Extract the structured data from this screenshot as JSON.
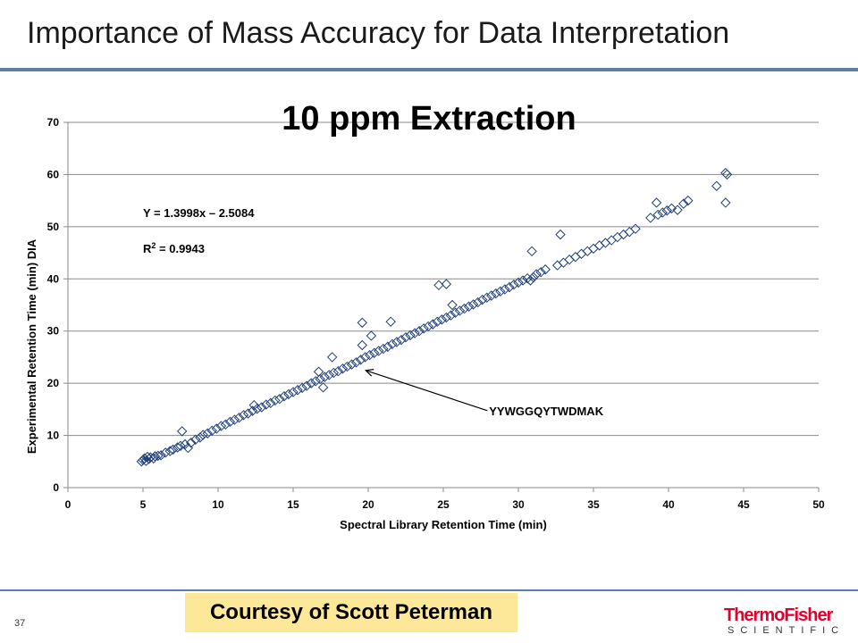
{
  "slide": {
    "title": "Importance of Mass Accuracy for Data Interpretation",
    "page_number": "37",
    "courtesy": "Courtesy of Scott Peterman",
    "logo": {
      "line1": "ThermoFisher",
      "line2": "SCIENTIFIC"
    }
  },
  "colors": {
    "marker": "#1f3f7a",
    "rule": "#5b7fa6",
    "highlight": "#fde89a",
    "brand": "#e4002b"
  },
  "chart_data": {
    "type": "scatter",
    "title": "10 ppm Extraction",
    "xlabel": "Spectral Library Retention Time (min)",
    "ylabel": "Experimental Retention Time (min) DIA",
    "xlim": [
      0,
      50
    ],
    "ylim": [
      0,
      70
    ],
    "xticks": [
      0,
      5,
      10,
      15,
      20,
      25,
      30,
      35,
      40,
      45,
      50
    ],
    "yticks": [
      0,
      10,
      20,
      30,
      40,
      50,
      60,
      70
    ],
    "grid": "horizontal",
    "marker": "open-diamond",
    "equation": "Y = 1.3998x – 2.5084",
    "r2_prefix": "R",
    "r2_sup": "2",
    "r2_value": " = 0.9943",
    "annotation": {
      "text": "YYWGGQYTWDMAK",
      "x": 19.6,
      "y": 22.8
    },
    "points": [
      [
        4.9,
        5.0
      ],
      [
        5.0,
        5.3
      ],
      [
        5.1,
        5.6
      ],
      [
        5.2,
        5.1
      ],
      [
        5.3,
        5.9
      ],
      [
        5.4,
        5.5
      ],
      [
        5.5,
        5.8
      ],
      [
        5.7,
        5.6
      ],
      [
        5.8,
        6.0
      ],
      [
        6.0,
        6.1
      ],
      [
        6.2,
        6.2
      ],
      [
        6.5,
        6.7
      ],
      [
        6.8,
        7.0
      ],
      [
        7.0,
        7.3
      ],
      [
        7.3,
        7.7
      ],
      [
        7.5,
        8.0
      ],
      [
        7.6,
        10.8
      ],
      [
        7.8,
        8.3
      ],
      [
        8.0,
        7.6
      ],
      [
        8.2,
        8.6
      ],
      [
        8.5,
        9.2
      ],
      [
        8.8,
        9.6
      ],
      [
        9.0,
        10.1
      ],
      [
        9.3,
        10.4
      ],
      [
        9.6,
        10.9
      ],
      [
        9.9,
        11.3
      ],
      [
        10.2,
        11.8
      ],
      [
        10.5,
        12.1
      ],
      [
        10.8,
        12.6
      ],
      [
        11.1,
        13.0
      ],
      [
        11.4,
        13.4
      ],
      [
        11.7,
        13.9
      ],
      [
        12.0,
        14.2
      ],
      [
        12.3,
        14.7
      ],
      [
        12.4,
        15.8
      ],
      [
        12.6,
        15.1
      ],
      [
        12.9,
        15.4
      ],
      [
        13.2,
        15.9
      ],
      [
        13.5,
        16.2
      ],
      [
        13.8,
        16.7
      ],
      [
        14.1,
        17.0
      ],
      [
        14.4,
        17.5
      ],
      [
        14.7,
        17.9
      ],
      [
        15.0,
        18.3
      ],
      [
        15.3,
        18.7
      ],
      [
        15.6,
        19.1
      ],
      [
        15.9,
        19.5
      ],
      [
        16.2,
        20.0
      ],
      [
        16.5,
        20.4
      ],
      [
        16.7,
        22.2
      ],
      [
        16.8,
        20.8
      ],
      [
        17.0,
        19.2
      ],
      [
        17.1,
        21.2
      ],
      [
        17.4,
        21.6
      ],
      [
        17.6,
        25.0
      ],
      [
        17.7,
        22.0
      ],
      [
        18.0,
        22.3
      ],
      [
        18.3,
        22.8
      ],
      [
        18.6,
        23.2
      ],
      [
        18.9,
        23.6
      ],
      [
        19.2,
        24.0
      ],
      [
        19.5,
        24.5
      ],
      [
        19.6,
        27.3
      ],
      [
        19.6,
        31.6
      ],
      [
        19.8,
        25.0
      ],
      [
        20.1,
        25.4
      ],
      [
        20.2,
        29.1
      ],
      [
        20.4,
        25.8
      ],
      [
        20.7,
        26.2
      ],
      [
        21.0,
        26.6
      ],
      [
        21.3,
        27.0
      ],
      [
        21.5,
        31.8
      ],
      [
        21.6,
        27.5
      ],
      [
        21.9,
        27.9
      ],
      [
        22.2,
        28.3
      ],
      [
        22.5,
        28.8
      ],
      [
        22.8,
        29.2
      ],
      [
        23.1,
        29.6
      ],
      [
        23.4,
        30.0
      ],
      [
        23.7,
        30.5
      ],
      [
        24.0,
        30.9
      ],
      [
        24.3,
        31.3
      ],
      [
        24.6,
        31.8
      ],
      [
        24.7,
        38.8
      ],
      [
        24.9,
        32.2
      ],
      [
        25.2,
        32.6
      ],
      [
        25.2,
        39.0
      ],
      [
        25.5,
        33.0
      ],
      [
        25.6,
        35.0
      ],
      [
        25.8,
        33.5
      ],
      [
        26.1,
        33.9
      ],
      [
        26.4,
        34.3
      ],
      [
        26.7,
        34.7
      ],
      [
        27.0,
        35.1
      ],
      [
        27.3,
        35.5
      ],
      [
        27.6,
        36.0
      ],
      [
        27.9,
        36.4
      ],
      [
        28.2,
        36.8
      ],
      [
        28.5,
        37.2
      ],
      [
        28.8,
        37.6
      ],
      [
        29.1,
        38.0
      ],
      [
        29.4,
        38.4
      ],
      [
        29.7,
        38.9
      ],
      [
        30.0,
        39.3
      ],
      [
        30.3,
        39.7
      ],
      [
        30.6,
        40.1
      ],
      [
        30.8,
        39.7
      ],
      [
        30.9,
        45.3
      ],
      [
        31.0,
        40.3
      ],
      [
        31.2,
        40.9
      ],
      [
        31.5,
        41.3
      ],
      [
        31.8,
        41.8
      ],
      [
        32.6,
        42.6
      ],
      [
        32.8,
        48.5
      ],
      [
        33.0,
        43.1
      ],
      [
        33.4,
        43.7
      ],
      [
        33.8,
        44.2
      ],
      [
        34.2,
        44.8
      ],
      [
        34.6,
        45.3
      ],
      [
        35.0,
        45.8
      ],
      [
        35.4,
        46.4
      ],
      [
        35.8,
        46.9
      ],
      [
        36.2,
        47.4
      ],
      [
        36.6,
        48.0
      ],
      [
        37.0,
        48.5
      ],
      [
        37.4,
        49.0
      ],
      [
        37.8,
        49.6
      ],
      [
        38.8,
        51.7
      ],
      [
        39.2,
        54.6
      ],
      [
        39.3,
        52.3
      ],
      [
        39.6,
        52.7
      ],
      [
        39.9,
        53.1
      ],
      [
        40.2,
        53.5
      ],
      [
        40.6,
        53.2
      ],
      [
        41.0,
        54.4
      ],
      [
        41.3,
        55.0
      ],
      [
        43.2,
        57.8
      ],
      [
        43.8,
        54.6
      ],
      [
        43.8,
        60.3
      ],
      [
        43.9,
        60.0
      ]
    ]
  }
}
